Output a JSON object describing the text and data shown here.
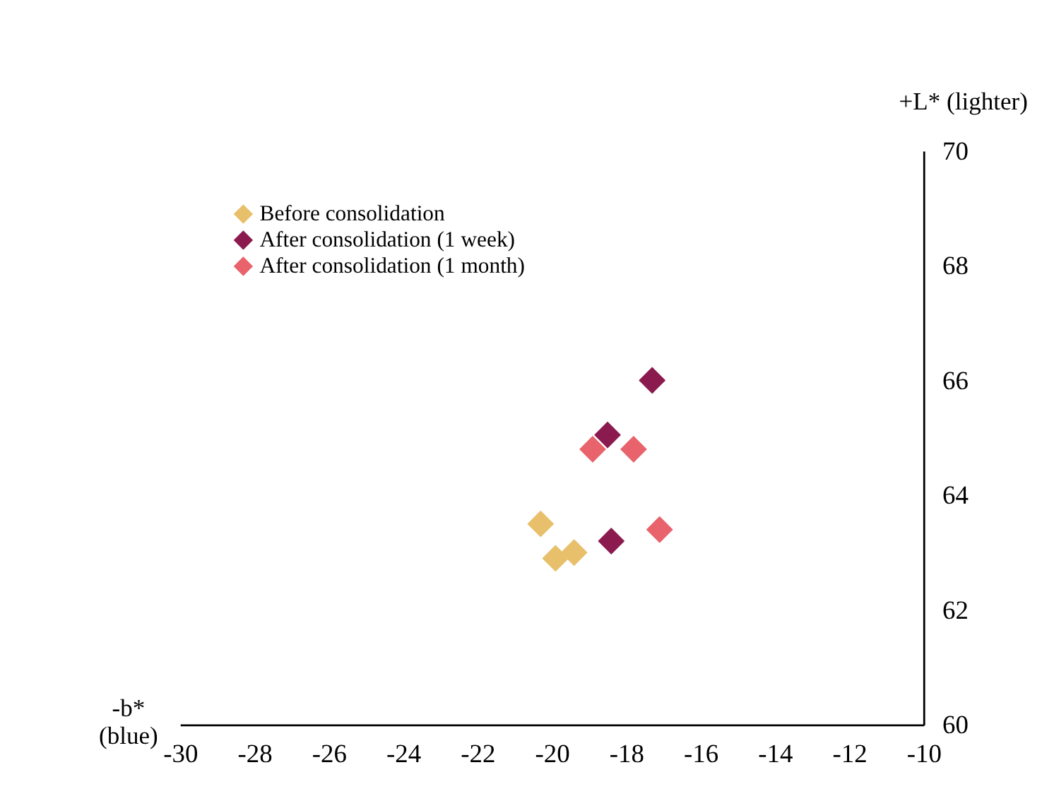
{
  "chart_data": {
    "type": "scatter",
    "xlabel": "-b* (blue)",
    "ylabel": "+L* (lighter)",
    "xlim": [
      -30,
      -10
    ],
    "xticks": [
      -30,
      -28,
      -26,
      -24,
      -22,
      -20,
      -18,
      -16,
      -14,
      -12,
      -10
    ],
    "ylim": [
      60,
      70
    ],
    "yticks": [
      60,
      62,
      64,
      66,
      68,
      70
    ],
    "marker": "diamond",
    "grid": false,
    "legend": "top left",
    "series": [
      {
        "name": "Before consolidation",
        "color": "#e8bf6a",
        "x": [
          -20.3,
          -19.9,
          -19.4
        ],
        "values": [
          63.5,
          62.9,
          63.0
        ]
      },
      {
        "name": "After consolidation (1 week)",
        "color": "#8b1a4f",
        "x": [
          -17.3,
          -18.5,
          -18.4
        ],
        "values": [
          66.0,
          65.05,
          63.2
        ]
      },
      {
        "name": "After consolidation (1 month)",
        "color": "#e8636b",
        "x": [
          -18.9,
          -17.8,
          -17.1
        ],
        "values": [
          64.8,
          64.8,
          63.4
        ]
      }
    ]
  }
}
